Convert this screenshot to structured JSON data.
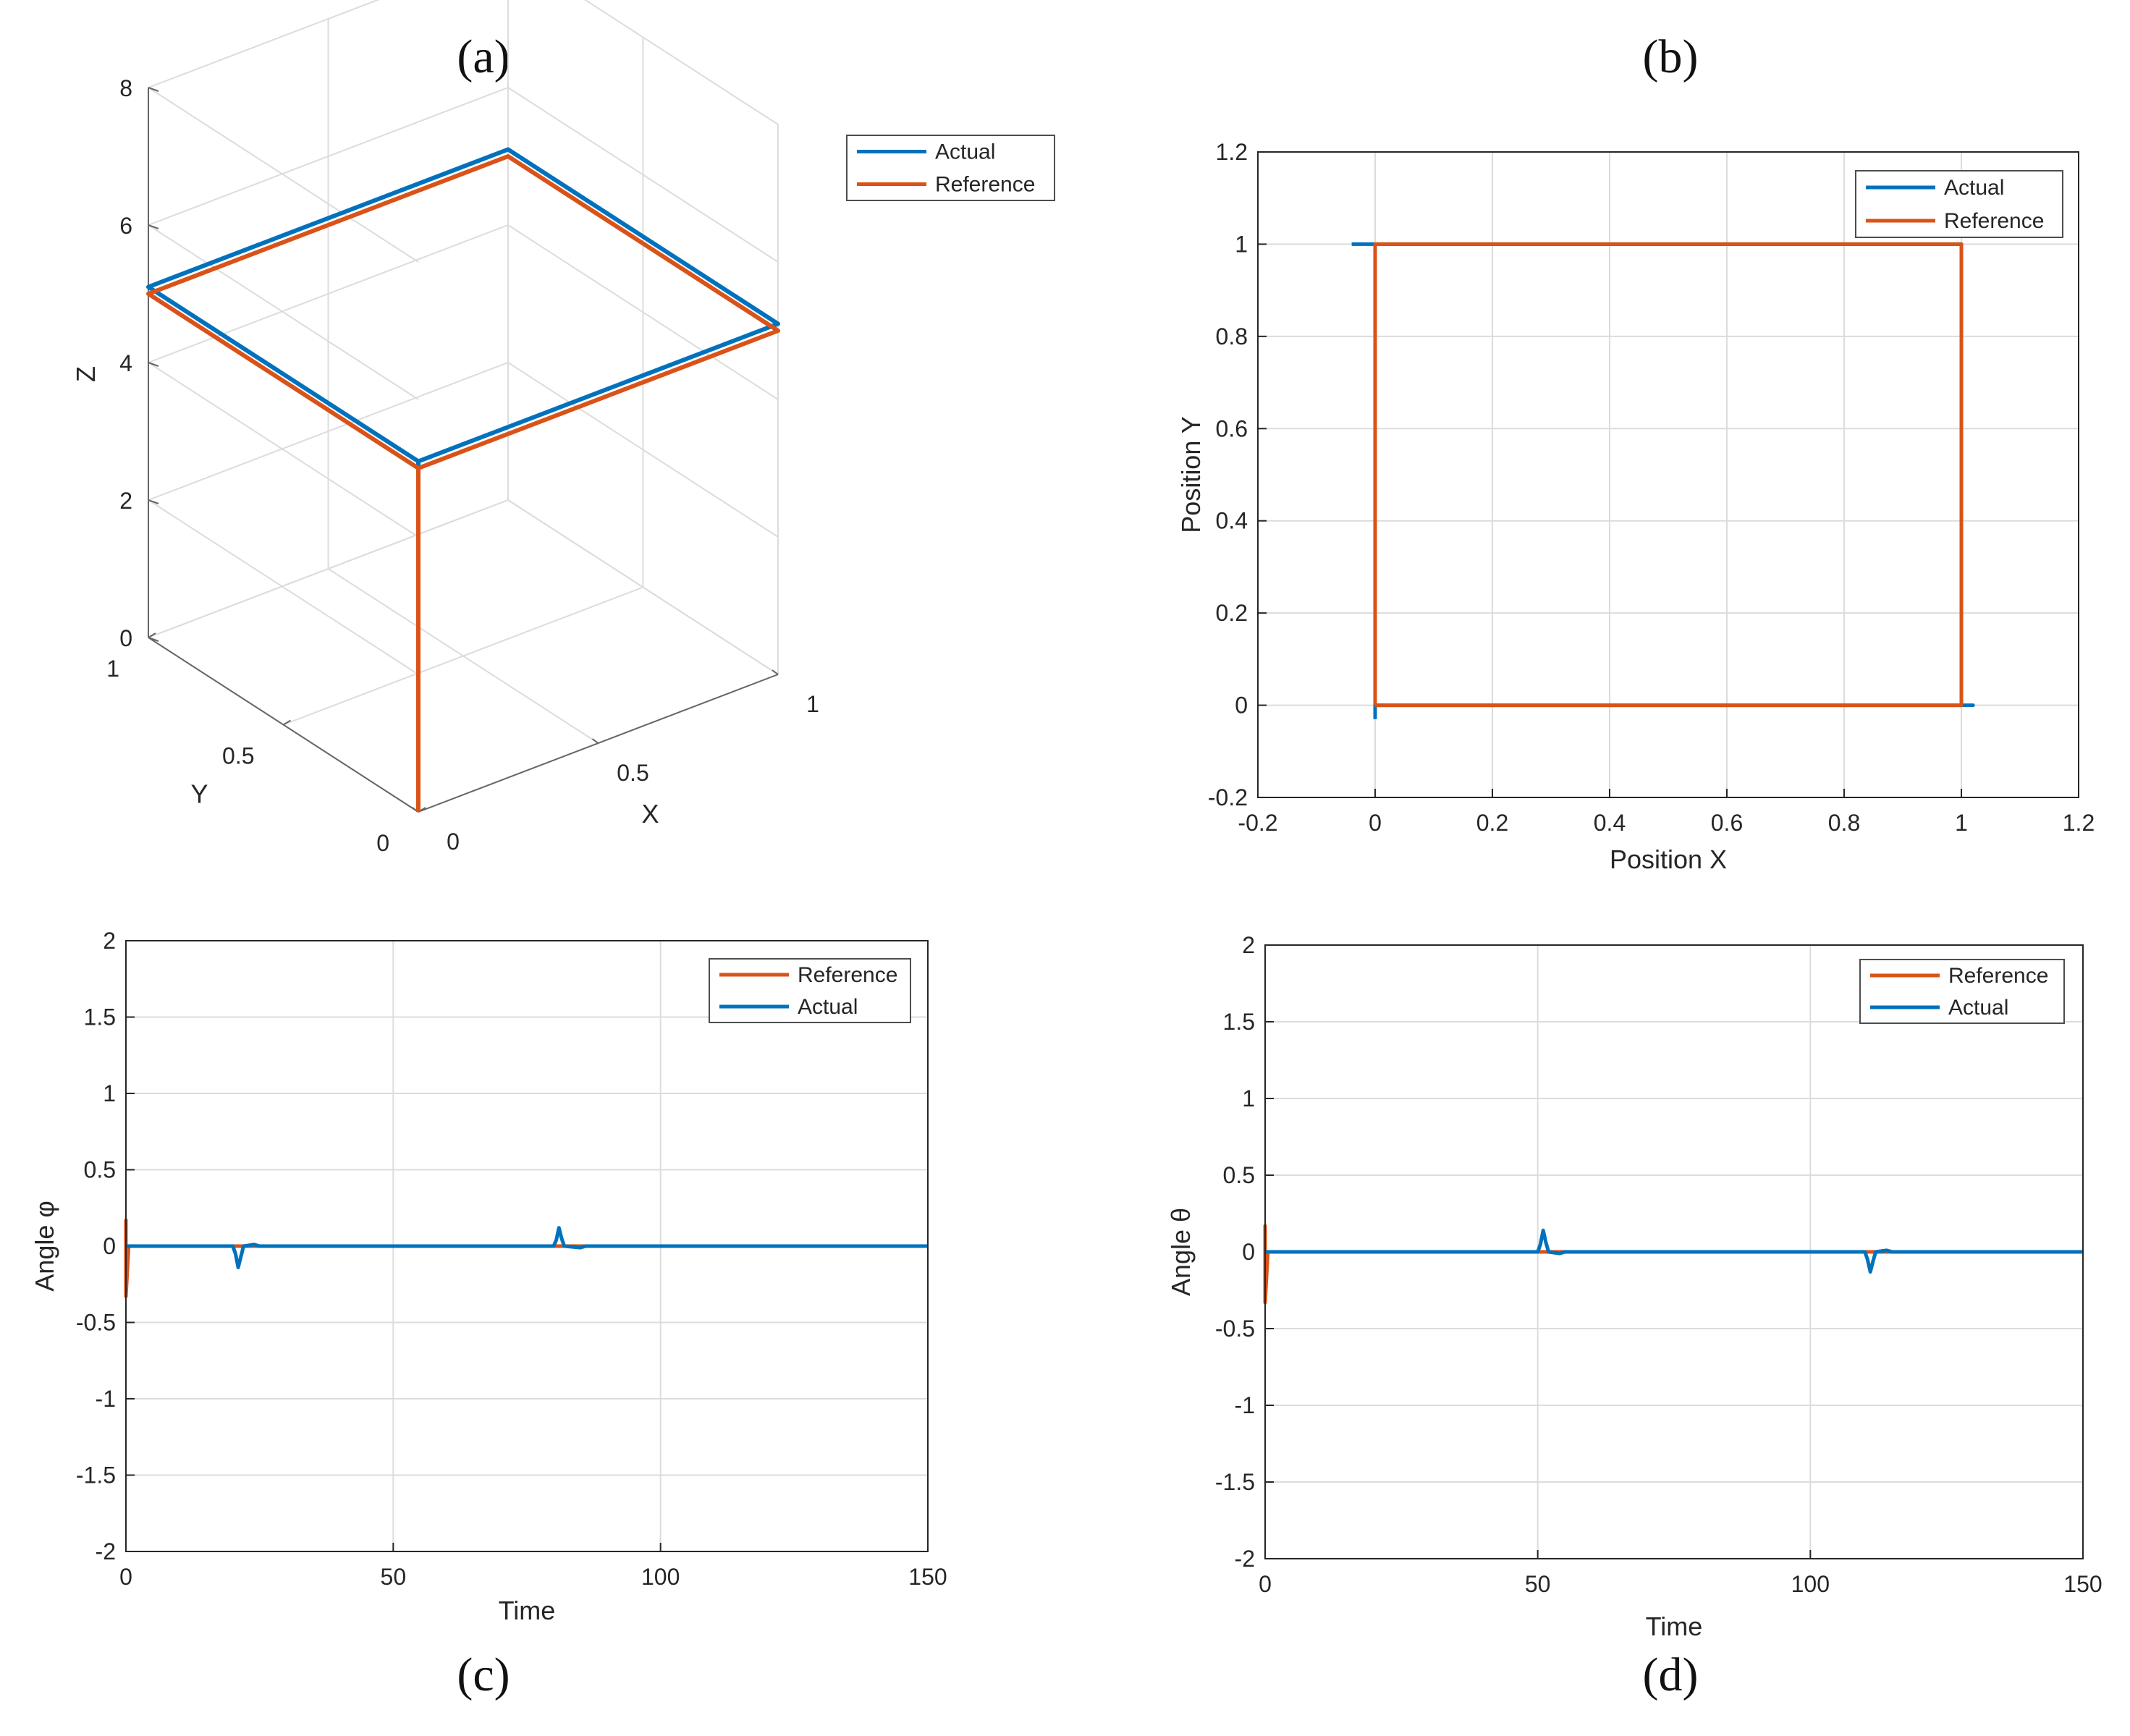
{
  "colors": {
    "actual": "#0072BD",
    "reference": "#D95319",
    "grid": "#dcdcdc",
    "axis": "#262626"
  },
  "chart_data": [
    {
      "id": "a",
      "caption": "(a)",
      "type": "line3d",
      "title": "",
      "xlabel": "X",
      "ylabel": "Y",
      "zlabel": "Z",
      "xlim": [
        0,
        1
      ],
      "ylim": [
        0,
        1
      ],
      "zlim": [
        0,
        8
      ],
      "xticks": [
        0,
        0.5,
        1
      ],
      "yticks": [
        0,
        0.5,
        1
      ],
      "zticks": [
        0,
        2,
        4,
        6,
        8
      ],
      "xtick_labels": [
        "0",
        "0.5",
        "1"
      ],
      "ytick_labels": [
        "0",
        "0.5",
        "1"
      ],
      "ztick_labels": [
        "0",
        "2",
        "4",
        "6",
        "8"
      ],
      "grid": true,
      "legend": {
        "entries": [
          "Actual",
          "Reference"
        ],
        "location": "top-right, outside"
      },
      "series": [
        {
          "name": "Actual",
          "points": [
            [
              0,
              0,
              0.1
            ],
            [
              0,
              0,
              5.1
            ],
            [
              1,
              0,
              5.1
            ],
            [
              1,
              1,
              5.1
            ],
            [
              0,
              1,
              5.1
            ],
            [
              0,
              0,
              5.1
            ]
          ]
        },
        {
          "name": "Reference",
          "points": [
            [
              0,
              0,
              0
            ],
            [
              0,
              0,
              5
            ],
            [
              1,
              0,
              5
            ],
            [
              1,
              1,
              5
            ],
            [
              0,
              1,
              5
            ],
            [
              0,
              0,
              5
            ]
          ]
        }
      ]
    },
    {
      "id": "b",
      "caption": "(b)",
      "type": "line",
      "title": "",
      "xlabel": "Position X",
      "ylabel": "Position Y",
      "xlim": [
        -0.2,
        1.2
      ],
      "ylim": [
        -0.2,
        1.2
      ],
      "xticks": [
        -0.2,
        0,
        0.2,
        0.4,
        0.6,
        0.8,
        1,
        1.2
      ],
      "xtick_labels": [
        "-0.2",
        "0",
        "0.2",
        "0.4",
        "0.6",
        "0.8",
        "1",
        "1.2"
      ],
      "yticks": [
        -0.2,
        0,
        0.2,
        0.4,
        0.6,
        0.8,
        1,
        1.2
      ],
      "ytick_labels": [
        "-0.2",
        "0",
        "0.2",
        "0.4",
        "0.6",
        "0.8",
        "1",
        "1.2"
      ],
      "grid": true,
      "legend": {
        "entries": [
          "Actual",
          "Reference"
        ],
        "location": "top-right"
      },
      "series": [
        {
          "name": "Actual",
          "x": [
            0,
            0,
            1.02,
            1,
            1,
            -0.04
          ],
          "y": [
            -0.03,
            0,
            0,
            0,
            1,
            1
          ]
        },
        {
          "name": "Reference",
          "x": [
            0,
            1,
            1,
            0,
            0
          ],
          "y": [
            0,
            0,
            1,
            1,
            0
          ]
        }
      ]
    },
    {
      "id": "c",
      "caption": "(c)",
      "type": "line",
      "title": "",
      "xlabel": "Time",
      "ylabel": "Angle φ",
      "xlim": [
        0,
        150
      ],
      "ylim": [
        -2,
        2
      ],
      "xticks": [
        0,
        50,
        100,
        150
      ],
      "xtick_labels": [
        "0",
        "50",
        "100",
        "150"
      ],
      "yticks": [
        -2,
        -1.5,
        -1,
        -0.5,
        0,
        0.5,
        1,
        1.5,
        2
      ],
      "ytick_labels": [
        "-2",
        "-1.5",
        "-1",
        "-0.5",
        "0",
        "0.5",
        "1",
        "1.5",
        "2"
      ],
      "grid": true,
      "legend": {
        "entries": [
          "Reference",
          "Actual"
        ],
        "location": "top-right"
      },
      "series": [
        {
          "name": "Reference",
          "x": [
            0,
            0,
            0,
            0.5,
            150
          ],
          "y": [
            0,
            0.17,
            -0.33,
            0,
            0
          ]
        },
        {
          "name": "Actual",
          "x": [
            0,
            20,
            20.5,
            21,
            21.5,
            22,
            24,
            25,
            80,
            80.5,
            81,
            81.5,
            82,
            85,
            86,
            150
          ],
          "y": [
            0,
            0,
            -0.05,
            -0.14,
            -0.07,
            0,
            0.01,
            0,
            0,
            0.04,
            0.12,
            0.05,
            0,
            -0.01,
            0,
            0
          ]
        }
      ]
    },
    {
      "id": "d",
      "caption": "(d)",
      "type": "line",
      "title": "",
      "xlabel": "Time",
      "ylabel": "Angle θ",
      "xlim": [
        0,
        150
      ],
      "ylim": [
        -2,
        2
      ],
      "xticks": [
        0,
        50,
        100,
        150
      ],
      "xtick_labels": [
        "0",
        "50",
        "100",
        "150"
      ],
      "yticks": [
        -2,
        -1.5,
        -1,
        -0.5,
        0,
        0.5,
        1,
        1.5,
        2
      ],
      "ytick_labels": [
        "-2",
        "-1.5",
        "-1",
        "-0.5",
        "0",
        "0.5",
        "1",
        "1.5",
        "2"
      ],
      "grid": true,
      "legend": {
        "entries": [
          "Reference",
          "Actual"
        ],
        "location": "top-right"
      },
      "series": [
        {
          "name": "Reference",
          "x": [
            0,
            0,
            0,
            0.5,
            150
          ],
          "y": [
            0,
            0.17,
            -0.33,
            0,
            0
          ]
        },
        {
          "name": "Actual",
          "x": [
            0,
            50,
            50.5,
            51,
            51.5,
            52,
            54,
            55,
            110,
            110.5,
            111,
            111.5,
            112,
            114,
            115,
            150
          ],
          "y": [
            0,
            0,
            0.05,
            0.14,
            0.06,
            0,
            -0.01,
            0,
            0,
            -0.05,
            -0.13,
            -0.06,
            0,
            0.01,
            0,
            0
          ]
        }
      ]
    }
  ]
}
